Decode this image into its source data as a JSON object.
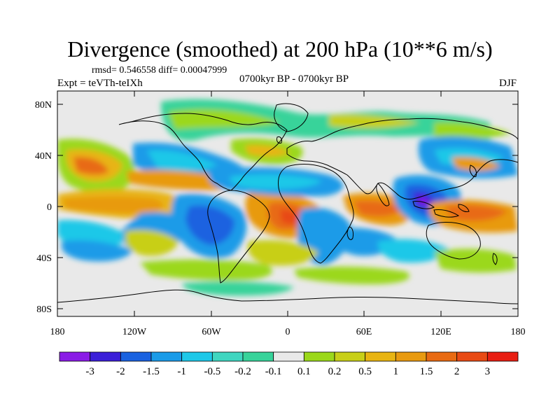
{
  "title": "Divergence (smoothed) at 200 hPa (10**6 m/s)",
  "stats_line": "rmsd= 0.546558 diff= 0.00047999",
  "experiment": "Expt = teVTh-teIXh",
  "period": "0700kyr BP - 0700kyr BP",
  "season": "DJF",
  "lat_ticks": [
    "80N",
    "40N",
    "0",
    "40S",
    "80S"
  ],
  "lon_ticks": [
    "180",
    "120W",
    "60W",
    "0",
    "60E",
    "120E",
    "180"
  ],
  "colorbar": {
    "labels": [
      "-3",
      "-2",
      "-1.5",
      "-1",
      "-0.5",
      "-0.2",
      "-0.1",
      "0.1",
      "0.2",
      "0.5",
      "1",
      "1.5",
      "2",
      "3"
    ],
    "colors": [
      "#8a1be6",
      "#3b1fd8",
      "#1a62e0",
      "#1a9be8",
      "#1ec8e8",
      "#3fd6c0",
      "#37d39a",
      "#e9e9e9",
      "#9bd81a",
      "#c8cf18",
      "#e8b412",
      "#e89a10",
      "#e86a12",
      "#e84a14",
      "#e81e12"
    ]
  },
  "map_colors": {
    "background": "#e9e9e9",
    "coast": "#000000"
  }
}
